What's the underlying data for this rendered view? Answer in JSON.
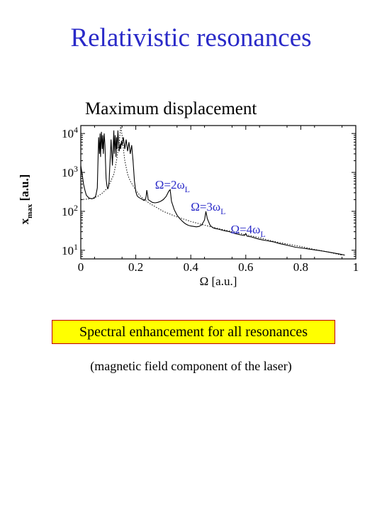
{
  "slide": {
    "title": "Relativistic resonances",
    "callout": "Spectral enhancement for all resonances",
    "note": "(magnetic field component of the laser)"
  },
  "colors": {
    "title": "#2a2ac8",
    "annotation": "#2a2ac8",
    "callout_bg": "#ffff00",
    "callout_border": "#c00000"
  },
  "chart_data": {
    "type": "line",
    "title": "Maximum displacement",
    "xlabel": "Ω [a.u.]",
    "ylabel": {
      "main": "x",
      "sub": "max",
      "unit": "[a.u.]"
    },
    "xlim": [
      0,
      1
    ],
    "ylim": [
      6,
      16000
    ],
    "yscale": "log",
    "x_ticks": [
      "0",
      "0.2",
      "0.4",
      "0.6",
      "0.8",
      "1"
    ],
    "y_ticks": [
      {
        "base": "10",
        "exp": "1",
        "value": 10
      },
      {
        "base": "10",
        "exp": "2",
        "value": 100
      },
      {
        "base": "10",
        "exp": "3",
        "value": 1000
      },
      {
        "base": "10",
        "exp": "4",
        "value": 10000
      }
    ],
    "series": [
      {
        "style": "solid",
        "x": [
          0.0,
          0.005,
          0.01,
          0.015,
          0.02,
          0.03,
          0.04,
          0.05,
          0.055,
          0.06,
          0.062,
          0.065,
          0.068,
          0.07,
          0.072,
          0.075,
          0.078,
          0.08,
          0.082,
          0.085,
          0.088,
          0.09,
          0.092,
          0.095,
          0.098,
          0.1,
          0.103,
          0.105,
          0.108,
          0.11,
          0.115,
          0.12,
          0.122,
          0.125,
          0.128,
          0.13,
          0.132,
          0.135,
          0.138,
          0.14,
          0.143,
          0.145,
          0.148,
          0.15,
          0.155,
          0.16,
          0.165,
          0.17,
          0.175,
          0.18,
          0.185,
          0.19,
          0.195,
          0.2,
          0.205,
          0.21,
          0.215,
          0.22,
          0.225,
          0.23,
          0.235,
          0.238,
          0.24,
          0.243,
          0.245,
          0.25,
          0.26,
          0.27,
          0.28,
          0.29,
          0.3,
          0.31,
          0.32,
          0.325,
          0.33,
          0.34,
          0.35,
          0.36,
          0.37,
          0.38,
          0.39,
          0.4,
          0.41,
          0.42,
          0.43,
          0.44,
          0.45,
          0.455,
          0.46,
          0.47,
          0.48,
          0.49,
          0.5,
          0.52,
          0.54,
          0.56,
          0.58,
          0.595,
          0.6,
          0.605,
          0.62,
          0.64,
          0.66,
          0.68,
          0.7,
          0.72,
          0.74,
          0.76,
          0.78,
          0.8,
          0.82,
          0.84,
          0.86,
          0.88,
          0.9,
          0.92,
          0.94,
          0.96
        ],
        "y": [
          1500,
          900,
          500,
          350,
          260,
          220,
          210,
          220,
          260,
          400,
          1500,
          8000,
          3000,
          10000,
          2500,
          11000,
          4000,
          9000,
          3000,
          10000,
          5000,
          1800,
          700,
          450,
          380,
          400,
          600,
          1200,
          3000,
          7000,
          1500,
          12000,
          3000,
          9000,
          2500,
          8000,
          4000,
          12000,
          5000,
          3500,
          5500,
          4000,
          6500,
          5000,
          8000,
          4000,
          7000,
          3500,
          6000,
          3000,
          5000,
          2000,
          600,
          320,
          250,
          230,
          220,
          210,
          200,
          190,
          200,
          250,
          350,
          260,
          200,
          190,
          170,
          165,
          170,
          180,
          200,
          240,
          330,
          360,
          180,
          110,
          80,
          65,
          55,
          48,
          44,
          42,
          41,
          40,
          41,
          45,
          60,
          100,
          65,
          44,
          38,
          36,
          35,
          32,
          30,
          27,
          25,
          24,
          27,
          23,
          22,
          20,
          18.5,
          17.5,
          16.5,
          15,
          14,
          13,
          12,
          11.5,
          11,
          10.5,
          10,
          9.5,
          9,
          8.5,
          8,
          7.5
        ]
      },
      {
        "style": "dotted",
        "x": [
          0.0,
          0.02,
          0.04,
          0.06,
          0.08,
          0.1,
          0.12,
          0.13,
          0.14,
          0.145,
          0.15,
          0.155,
          0.16,
          0.17,
          0.18,
          0.2,
          0.22,
          0.25,
          0.3,
          0.35,
          0.4,
          0.45,
          0.5,
          0.55,
          0.6,
          0.65,
          0.7,
          0.75,
          0.8,
          0.85,
          0.9,
          0.95
        ],
        "y": [
          200,
          205,
          215,
          240,
          300,
          420,
          900,
          2000,
          6000,
          16000,
          9000,
          4000,
          2000,
          900,
          600,
          350,
          230,
          160,
          100,
          72,
          55,
          44,
          36,
          30,
          25,
          21,
          17,
          14.5,
          12.5,
          10.5,
          9,
          7.5
        ]
      }
    ],
    "annotations": [
      {
        "base": "Ω=2ω",
        "sub": "L",
        "x": 0.27,
        "y": 380
      },
      {
        "base": "Ω=3ω",
        "sub": "L",
        "x": 0.4,
        "y": 105
      },
      {
        "base": "Ω=4ω",
        "sub": "L",
        "x": 0.545,
        "y": 27
      }
    ]
  }
}
